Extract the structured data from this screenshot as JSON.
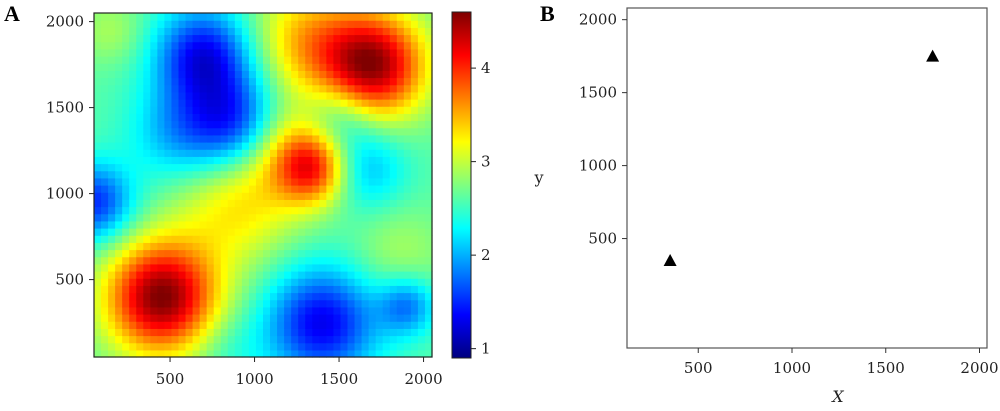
{
  "panels": {
    "a": "A",
    "b": "B"
  },
  "chart_data": [
    {
      "type": "heatmap",
      "title": "",
      "xlabel": "",
      "ylabel": "",
      "xlim": [
        50,
        2050
      ],
      "ylim": [
        50,
        2050
      ],
      "xticks": [
        500,
        1000,
        1500,
        2000
      ],
      "yticks": [
        500,
        1000,
        1500,
        2000
      ],
      "colorbar": {
        "range": [
          0.9,
          4.6
        ],
        "ticks": [
          1,
          2,
          3,
          4
        ],
        "colormap": "jet"
      },
      "background_value": 2.6,
      "peaks": [
        {
          "x": 450,
          "y": 400,
          "value": 4.6,
          "spread": 230
        },
        {
          "x": 1700,
          "y": 1750,
          "value": 4.5,
          "spread": 220
        },
        {
          "x": 1350,
          "y": 1150,
          "value": 3.9,
          "spread": 150
        },
        {
          "x": 900,
          "y": 950,
          "value": 3.3,
          "spread": 260
        },
        {
          "x": 1150,
          "y": 1300,
          "value": 3.3,
          "spread": 200
        },
        {
          "x": 1300,
          "y": 1900,
          "value": 3.4,
          "spread": 230
        },
        {
          "x": 1850,
          "y": 650,
          "value": 2.9,
          "spread": 200
        },
        {
          "x": 700,
          "y": 1800,
          "value": 1.3,
          "spread": 200
        },
        {
          "x": 900,
          "y": 1400,
          "value": 1.4,
          "spread": 200
        },
        {
          "x": 50,
          "y": 950,
          "value": 1.5,
          "spread": 160
        },
        {
          "x": 1400,
          "y": 250,
          "value": 1.3,
          "spread": 230
        },
        {
          "x": 1900,
          "y": 350,
          "value": 1.8,
          "spread": 120
        },
        {
          "x": 1650,
          "y": 1150,
          "value": 2.0,
          "spread": 170
        },
        {
          "x": 1500,
          "y": 1450,
          "value": 2.1,
          "spread": 150
        },
        {
          "x": 550,
          "y": 1350,
          "value": 2.0,
          "spread": 200
        },
        {
          "x": 150,
          "y": 1950,
          "value": 2.9,
          "spread": 140
        },
        {
          "x": 850,
          "y": 100,
          "value": 2.4,
          "spread": 160
        }
      ]
    },
    {
      "type": "scatter",
      "title": "",
      "xlabel": "X",
      "ylabel": "y",
      "xlim": [
        120,
        2040
      ],
      "ylim": [
        -250,
        2080
      ],
      "xticks": [
        500,
        1000,
        1500,
        2000
      ],
      "yticks": [
        500,
        1000,
        1500,
        2000
      ],
      "marker": "triangle",
      "color": "#000000",
      "points": [
        {
          "x": 350,
          "y": 350
        },
        {
          "x": 1750,
          "y": 1750
        }
      ]
    }
  ]
}
